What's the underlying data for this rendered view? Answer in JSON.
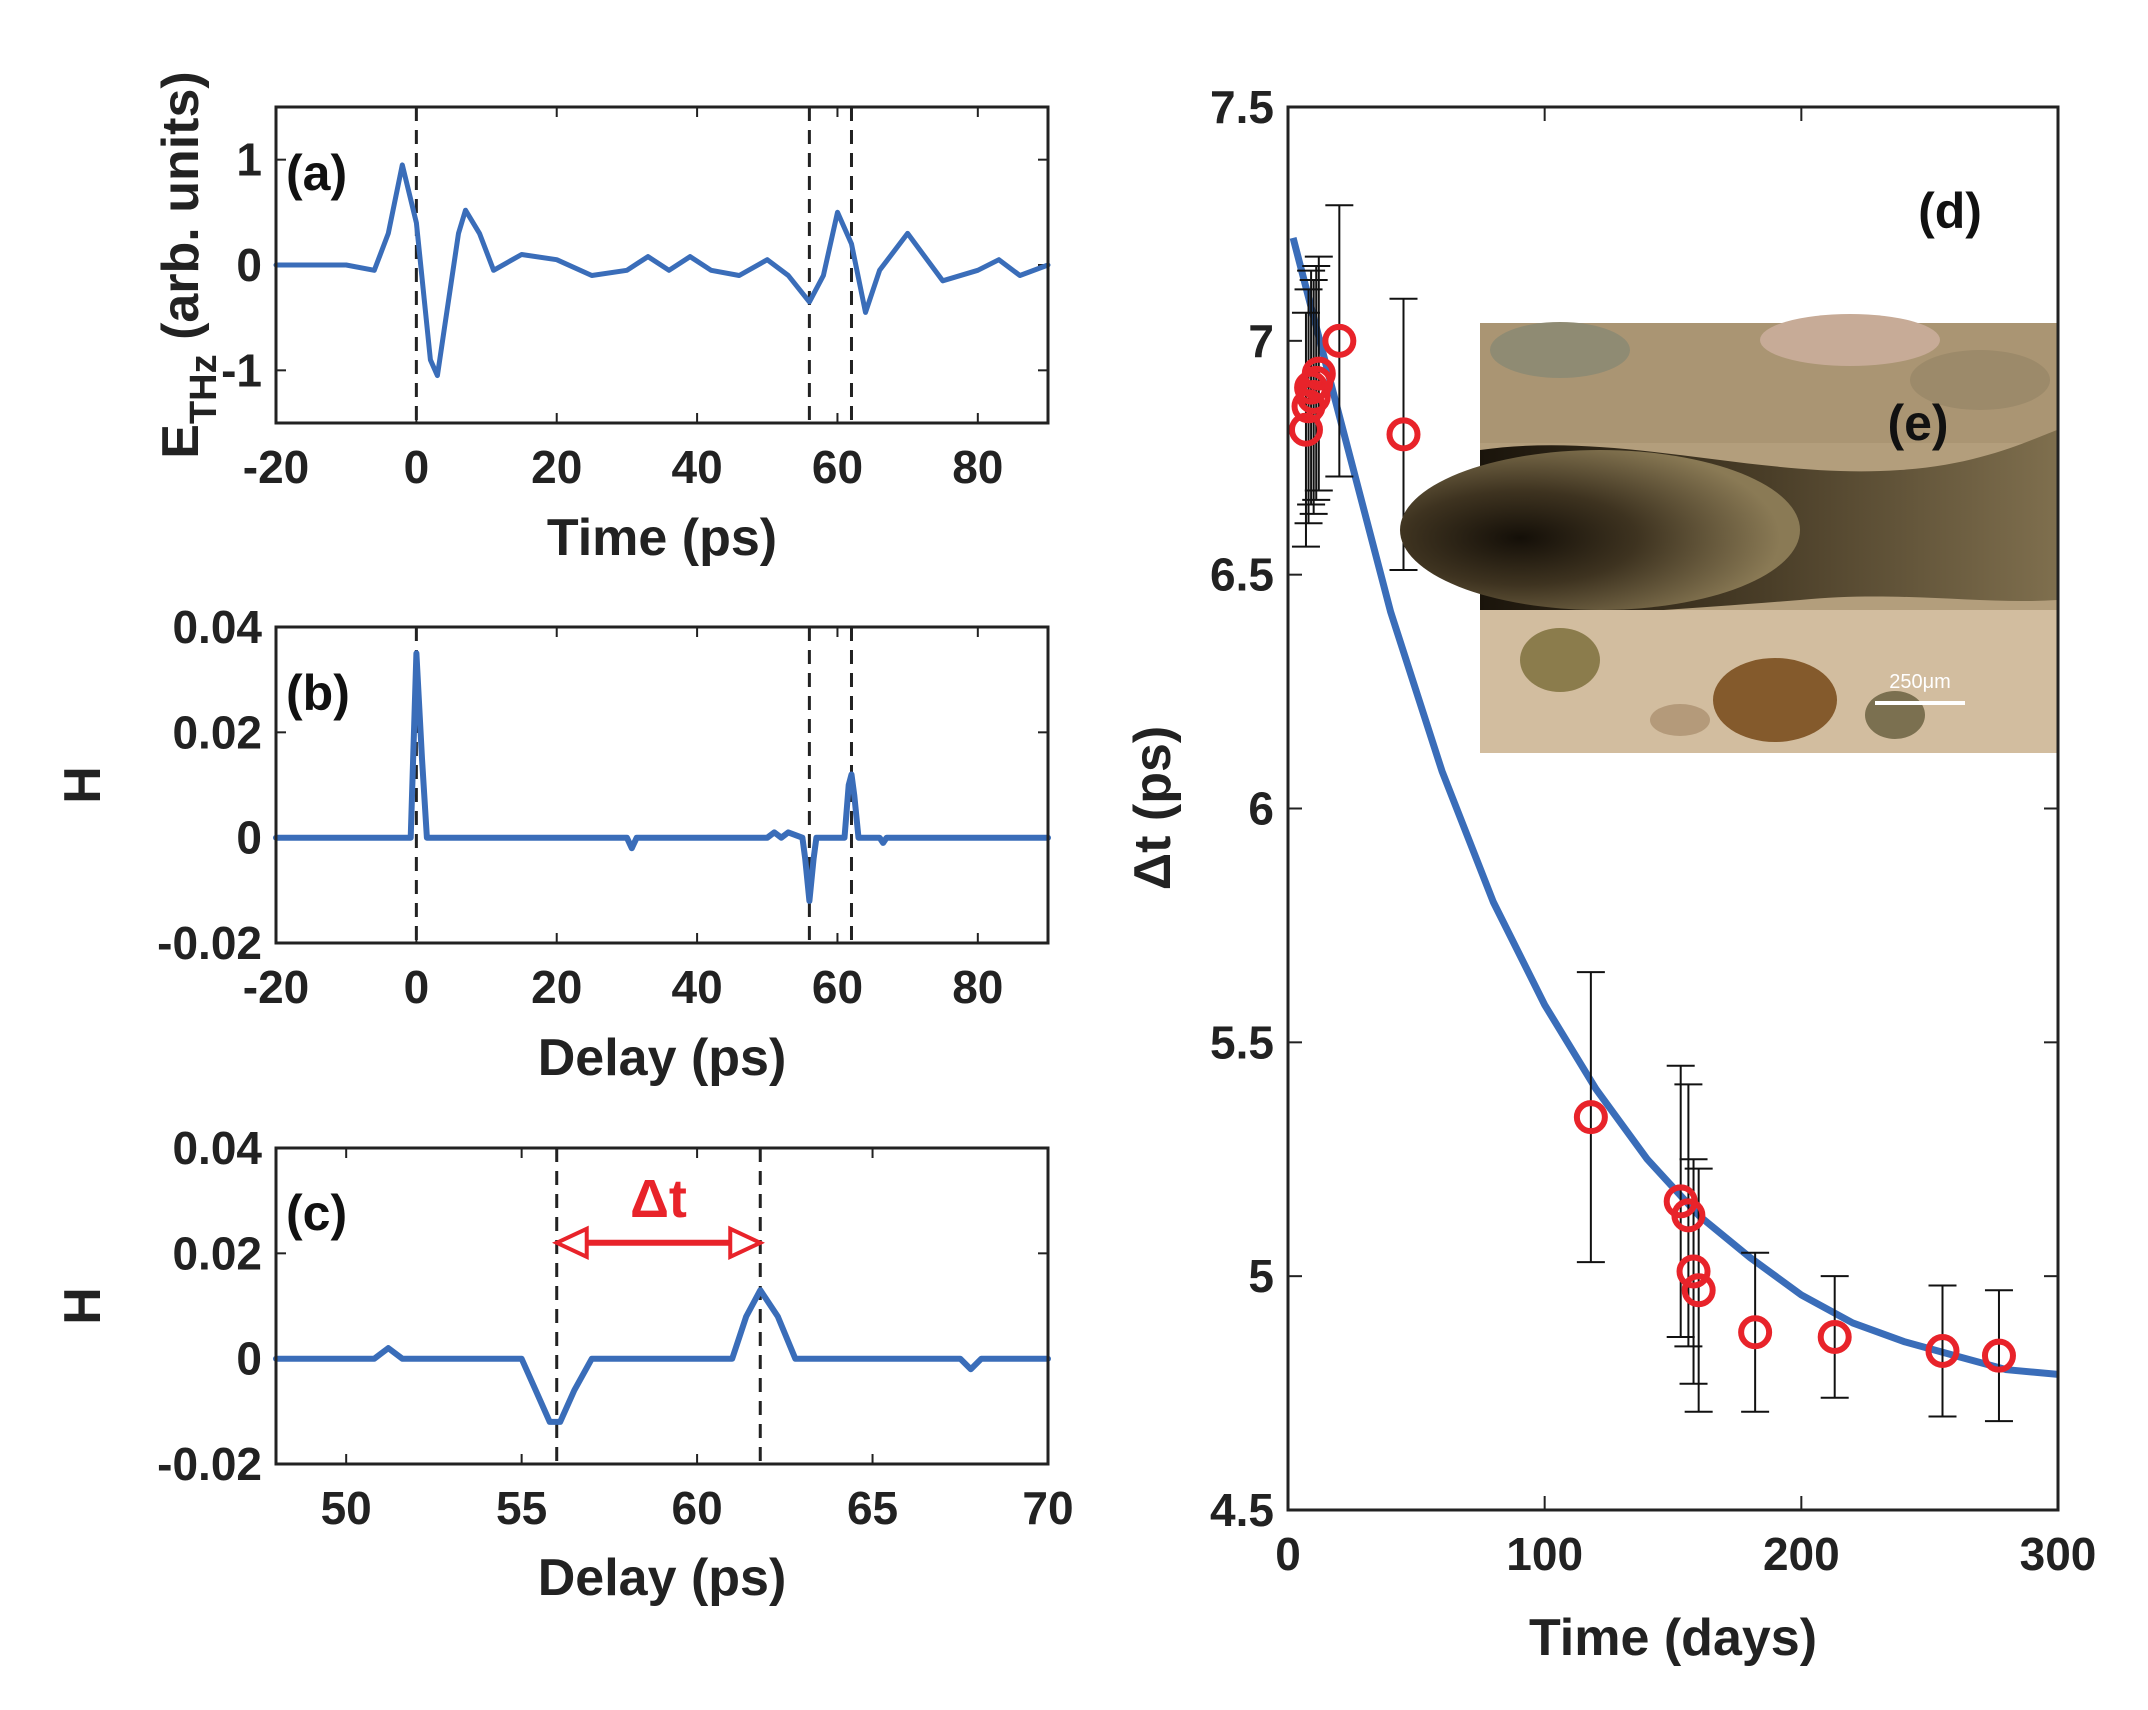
{
  "colors": {
    "curve": "#3A6DB9",
    "marker": "#E8232A",
    "annotation": "#E8232A",
    "axis": "#222222",
    "dashed": "#222222"
  },
  "chart_data": [
    {
      "id": "a",
      "type": "line",
      "panel_label": "(a)",
      "xlabel": "Time (ps)",
      "ylabel": "E",
      "ylabel_sub": "THz",
      "ylabel_suffix": " (arb. units)",
      "xlim": [
        -20,
        90
      ],
      "ylim": [
        -1.5,
        1.5
      ],
      "xticks": [
        -20,
        0,
        20,
        40,
        60,
        80
      ],
      "yticks": [
        -1,
        0,
        1
      ],
      "dashed_x": [
        0,
        56,
        62
      ],
      "series": [
        {
          "x": [
            -20,
            -10,
            -6,
            -4,
            -2,
            0,
            2,
            3,
            4,
            6,
            7,
            9,
            11,
            15,
            20,
            25,
            30,
            33,
            36,
            39,
            42,
            46,
            50,
            53,
            56,
            58,
            60,
            62,
            64,
            66,
            70,
            75,
            80,
            83,
            86,
            90
          ],
          "y": [
            0,
            0,
            -0.05,
            0.3,
            0.95,
            0.4,
            -0.9,
            -1.05,
            -0.6,
            0.3,
            0.52,
            0.3,
            -0.05,
            0.1,
            0.05,
            -0.1,
            -0.05,
            0.08,
            -0.05,
            0.08,
            -0.05,
            -0.1,
            0.05,
            -0.1,
            -0.35,
            -0.1,
            0.5,
            0.2,
            -0.45,
            -0.05,
            0.3,
            -0.15,
            -0.05,
            0.05,
            -0.1,
            0
          ]
        }
      ]
    },
    {
      "id": "b",
      "type": "line",
      "panel_label": "(b)",
      "xlabel": "Delay (ps)",
      "ylabel": "H",
      "xlim": [
        -20,
        90
      ],
      "ylim": [
        -0.02,
        0.04
      ],
      "xticks": [
        -20,
        0,
        20,
        40,
        60,
        80
      ],
      "yticks": [
        -0.02,
        0,
        0.02,
        0.04
      ],
      "dashed_x": [
        0,
        56,
        62
      ],
      "series": [
        {
          "x": [
            -20,
            -0.8,
            0,
            0.8,
            1.5,
            30,
            30.7,
            31.4,
            47,
            50,
            51,
            52,
            53,
            55,
            55.4,
            56,
            56.6,
            57,
            61,
            61.6,
            62,
            62.4,
            63,
            66,
            66.5,
            67,
            90
          ],
          "y": [
            0,
            0,
            0.035,
            0.015,
            0,
            0,
            -0.002,
            0,
            0,
            0,
            0.001,
            0,
            0.001,
            0,
            -0.004,
            -0.012,
            -0.004,
            0,
            0,
            0.01,
            0.012,
            0.008,
            0,
            0,
            -0.001,
            0,
            0
          ]
        }
      ]
    },
    {
      "id": "c",
      "type": "line",
      "panel_label": "(c)",
      "xlabel": "Delay (ps)",
      "ylabel": "H",
      "xlim": [
        48,
        70
      ],
      "ylim": [
        -0.02,
        0.04
      ],
      "xticks": [
        50,
        55,
        60,
        65,
        70
      ],
      "yticks": [
        -0.02,
        0,
        0.02,
        0.04
      ],
      "dashed_x": [
        56,
        61.8
      ],
      "annotation": {
        "text": "Δt",
        "x1": 56,
        "x2": 61.8,
        "y": 0.022
      },
      "series": [
        {
          "x": [
            48,
            50.8,
            51.2,
            51.6,
            55,
            55.4,
            55.8,
            56.1,
            56.5,
            57,
            61,
            61.4,
            61.8,
            62.3,
            62.8,
            67.5,
            67.8,
            68.1,
            70
          ],
          "y": [
            0,
            0,
            0.002,
            0,
            0,
            -0.006,
            -0.012,
            -0.012,
            -0.006,
            0,
            0,
            0.008,
            0.013,
            0.008,
            0,
            0,
            -0.002,
            0,
            0
          ]
        }
      ]
    },
    {
      "id": "d",
      "type": "scatter",
      "panel_label": "(d)",
      "xlabel": "Time (days)",
      "ylabel": "Δt (ps)",
      "xlim": [
        0,
        300
      ],
      "ylim": [
        4.5,
        7.5
      ],
      "xticks": [
        0,
        100,
        200,
        300
      ],
      "yticks": [
        4.5,
        5,
        5.5,
        6,
        6.5,
        7,
        7.5
      ],
      "points": [
        {
          "x": 7,
          "y": 6.81,
          "err": 0.25
        },
        {
          "x": 8,
          "y": 6.86,
          "err": 0.25
        },
        {
          "x": 9,
          "y": 6.9,
          "err": 0.25
        },
        {
          "x": 10,
          "y": 6.88,
          "err": 0.25
        },
        {
          "x": 11,
          "y": 6.91,
          "err": 0.25
        },
        {
          "x": 12,
          "y": 6.93,
          "err": 0.25
        },
        {
          "x": 20,
          "y": 7.0,
          "err": 0.29
        },
        {
          "x": 45,
          "y": 6.8,
          "err": 0.29
        },
        {
          "x": 118,
          "y": 5.34,
          "err": 0.31
        },
        {
          "x": 153,
          "y": 5.16,
          "err": 0.29
        },
        {
          "x": 156,
          "y": 5.13,
          "err": 0.28
        },
        {
          "x": 158,
          "y": 5.01,
          "err": 0.24
        },
        {
          "x": 160,
          "y": 4.97,
          "err": 0.26
        },
        {
          "x": 182,
          "y": 4.88,
          "err": 0.17
        },
        {
          "x": 213,
          "y": 4.87,
          "err": 0.13
        },
        {
          "x": 255,
          "y": 4.84,
          "err": 0.14
        },
        {
          "x": 277,
          "y": 4.83,
          "err": 0.14
        }
      ],
      "fit": {
        "x": [
          2,
          20,
          40,
          60,
          80,
          100,
          120,
          140,
          160,
          180,
          200,
          220,
          240,
          260,
          280,
          300
        ],
        "y": [
          7.22,
          6.84,
          6.42,
          6.08,
          5.8,
          5.58,
          5.4,
          5.25,
          5.13,
          5.04,
          4.96,
          4.9,
          4.86,
          4.83,
          4.8,
          4.79
        ]
      },
      "inset": {
        "label": "(e)",
        "scalebar": "250μm"
      }
    }
  ]
}
